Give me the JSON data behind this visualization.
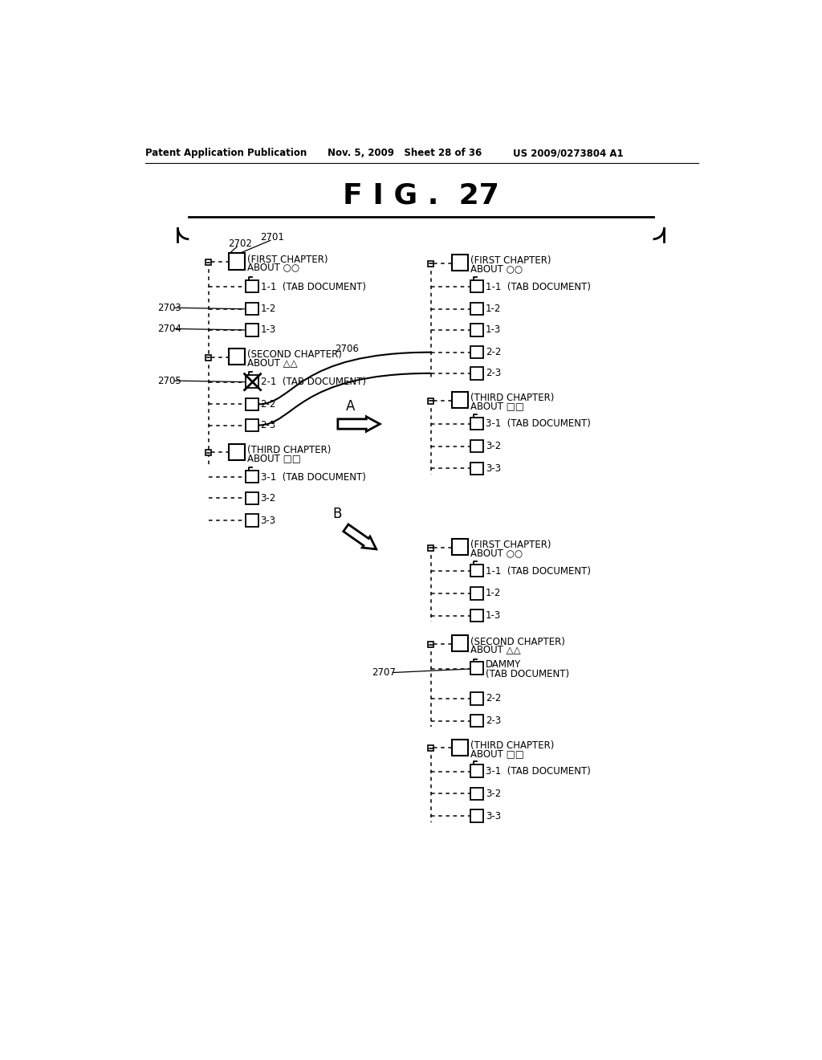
{
  "title": "F I G .  27",
  "header_left": "Patent Application Publication",
  "header_mid": "Nov. 5, 2009   Sheet 28 of 36",
  "header_right": "US 2009/0273804 A1",
  "bg_color": "#ffffff",
  "text_color": "#000000"
}
